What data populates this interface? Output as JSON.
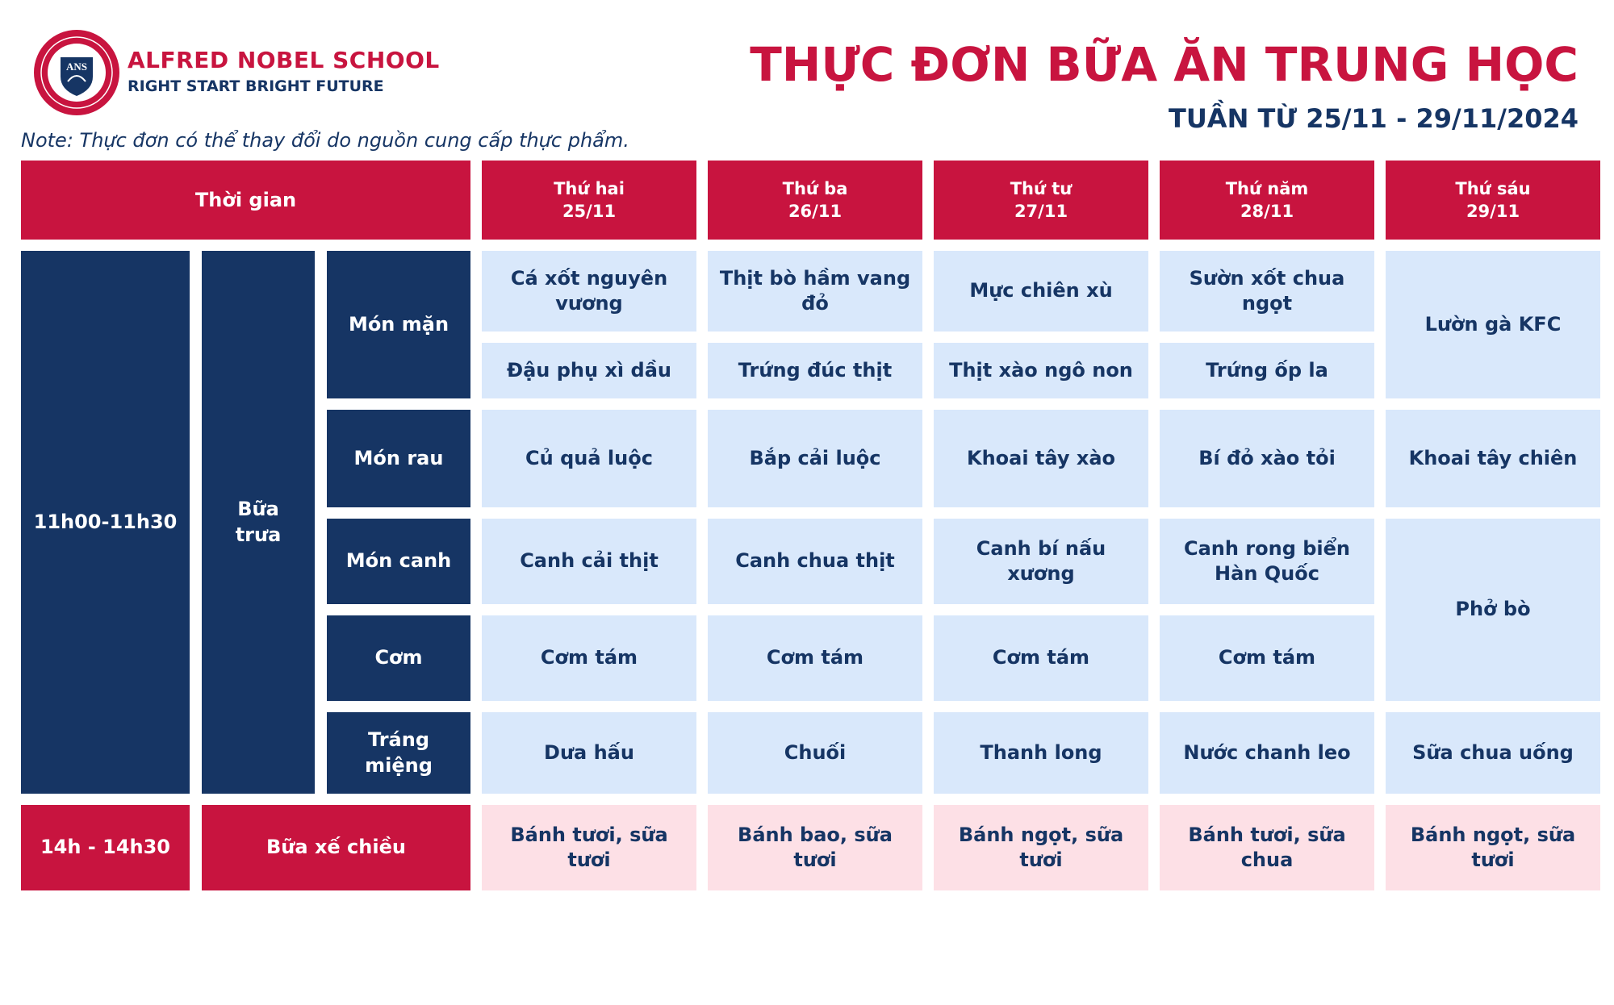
{
  "header": {
    "school_name": "ALFRED NOBEL SCHOOL",
    "slogan": "RIGHT START  BRIGHT FUTURE",
    "logo_text": "ANS",
    "title": "THỰC ĐƠN BỮA ĂN TRUNG HỌC",
    "week": "TUẦN TỪ 25/11 - 29/11/2024",
    "note": "Note: Thực đơn có thể thay đổi do nguồn cung cấp thực phẩm."
  },
  "colors": {
    "brand_red": "#c8143f",
    "navy": "#163564",
    "light_blue": "#d9e8fb",
    "light_pink": "#fde0e6"
  },
  "table": {
    "time_header": "Thời gian",
    "days": [
      {
        "name": "Thứ hai",
        "date": "25/11"
      },
      {
        "name": "Thứ ba",
        "date": "26/11"
      },
      {
        "name": "Thứ tư",
        "date": "27/11"
      },
      {
        "name": "Thứ năm",
        "date": "28/11"
      },
      {
        "name": "Thứ sáu",
        "date": "29/11"
      }
    ],
    "lunch": {
      "time": "11h00-11h30",
      "meal": "Bữa trưa",
      "categories": {
        "main": "Món mặn",
        "vegetable": "Món rau",
        "soup": "Món canh",
        "rice": "Cơm",
        "dessert": "Tráng miệng"
      },
      "mon": {
        "main1": "Cá xốt nguyên vương",
        "main2": "Đậu phụ xì dầu",
        "vegetable": "Củ quả luộc",
        "soup": "Canh cải thịt",
        "rice": "Cơm tám",
        "dessert": "Dưa hấu"
      },
      "tue": {
        "main1": "Thịt bò hầm vang đỏ",
        "main2": "Trứng đúc thịt",
        "vegetable": "Bắp cải luộc",
        "soup": "Canh chua thịt",
        "rice": "Cơm tám",
        "dessert": "Chuối"
      },
      "wed": {
        "main1": "Mực chiên xù",
        "main2": "Thịt xào ngô non",
        "vegetable": "Khoai tây xào",
        "soup": "Canh bí nấu xương",
        "rice": "Cơm tám",
        "dessert": "Thanh long"
      },
      "thu": {
        "main1": "Sườn xốt chua ngọt",
        "main2": "Trứng ốp la",
        "vegetable": "Bí đỏ xào tỏi",
        "soup": "Canh rong biển Hàn Quốc",
        "rice": "Cơm tám",
        "dessert": "Nước chanh leo"
      },
      "fri": {
        "main": "Lườn gà KFC",
        "vegetable": "Khoai tây chiên",
        "soup_rice": "Phở  bò",
        "dessert": "Sữa chua uống"
      }
    },
    "snack": {
      "time": "14h - 14h30",
      "meal": "Bữa xế chiều",
      "items": [
        "Bánh tươi, sữa tươi",
        "Bánh bao, sữa tươi",
        "Bánh ngọt, sữa tươi",
        "Bánh tươi, sữa chua",
        "Bánh ngọt, sữa tươi"
      ]
    }
  }
}
